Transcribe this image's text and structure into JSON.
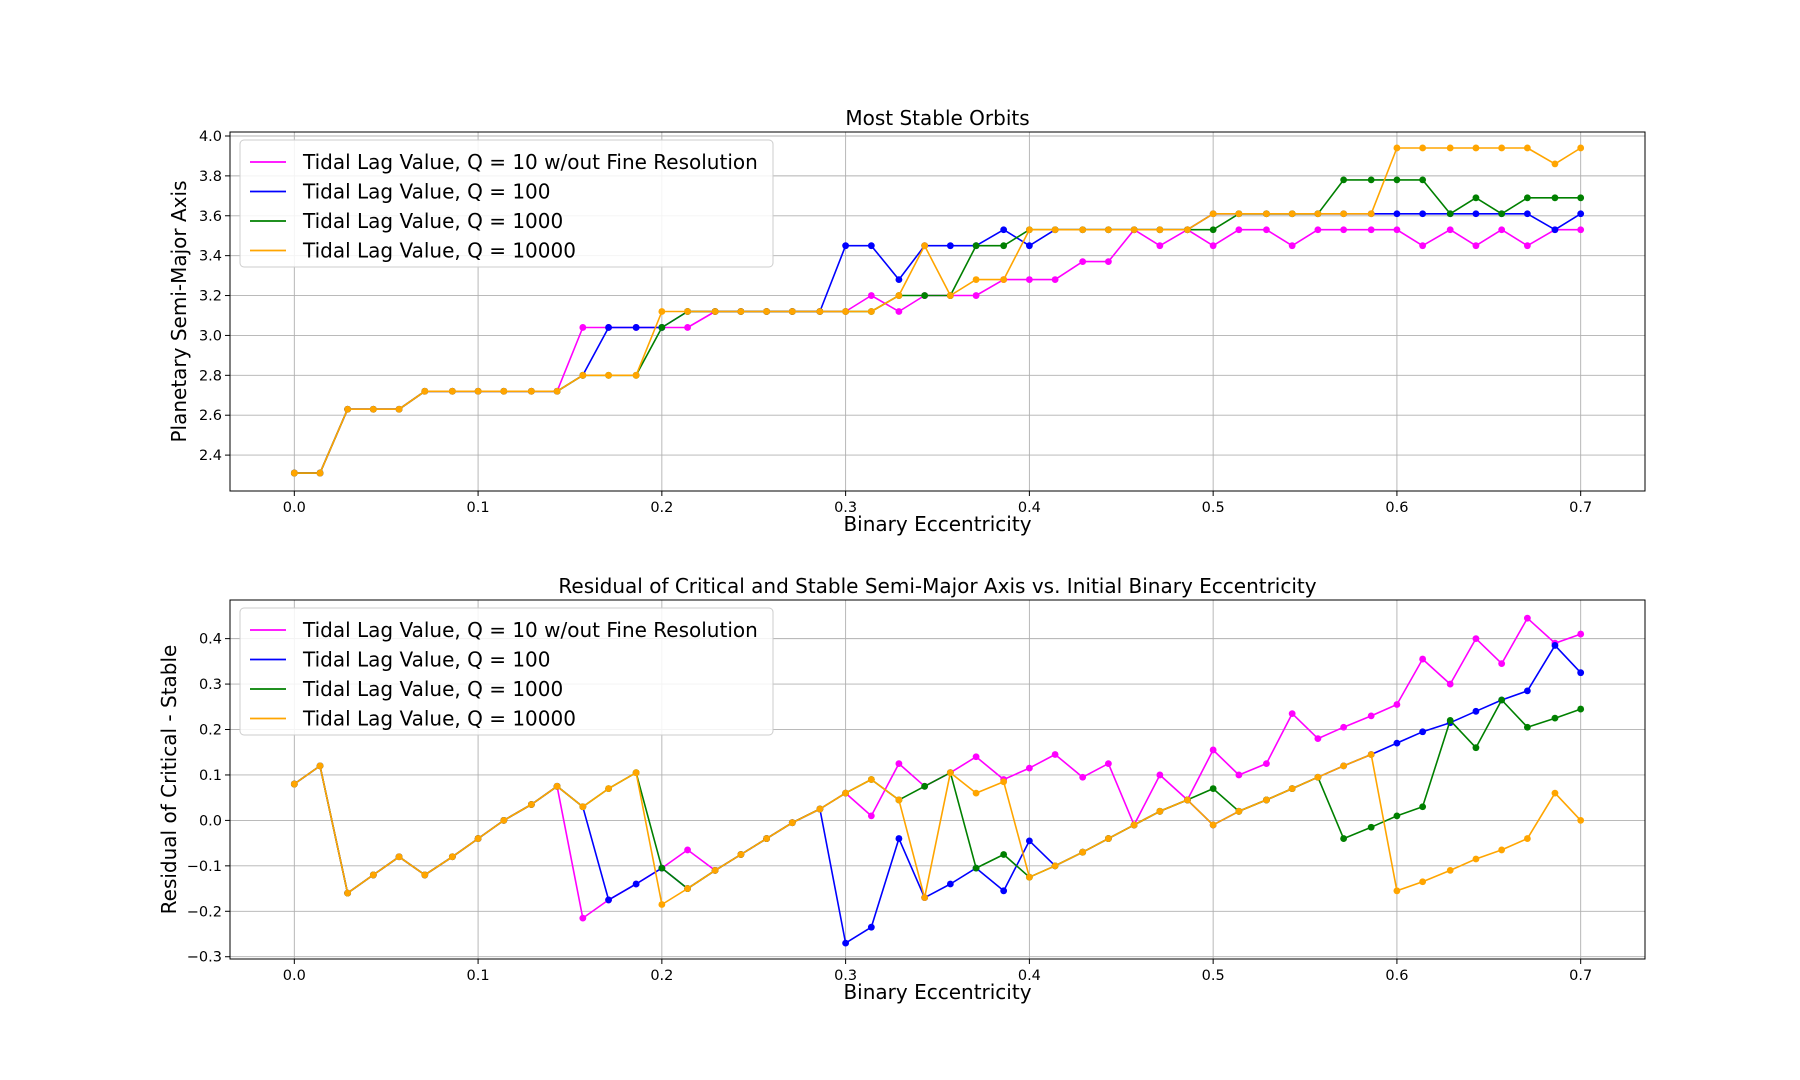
{
  "chart_data": [
    {
      "type": "line",
      "title": "Most Stable Orbits",
      "xlabel": "Binary Eccentricity",
      "ylabel": "Planetary Semi-Major Axis",
      "xlim": [
        -0.035,
        0.735
      ],
      "ylim": [
        2.22,
        4.02
      ],
      "xticks": [
        "0.0",
        "0.1",
        "0.2",
        "0.3",
        "0.4",
        "0.5",
        "0.6",
        "0.7"
      ],
      "yticks": [
        "2.4",
        "2.6",
        "2.8",
        "3.0",
        "3.2",
        "3.4",
        "3.6",
        "3.8",
        "4.0"
      ],
      "grid": true,
      "legend_position": "top-left",
      "x": [
        0.0,
        0.014,
        0.029,
        0.043,
        0.057,
        0.071,
        0.086,
        0.1,
        0.114,
        0.129,
        0.143,
        0.157,
        0.171,
        0.186,
        0.2,
        0.214,
        0.229,
        0.243,
        0.257,
        0.271,
        0.286,
        0.3,
        0.314,
        0.329,
        0.343,
        0.357,
        0.371,
        0.386,
        0.4,
        0.414,
        0.429,
        0.443,
        0.457,
        0.471,
        0.486,
        0.5,
        0.514,
        0.529,
        0.543,
        0.557,
        0.571,
        0.586,
        0.6,
        0.614,
        0.629,
        0.643,
        0.657,
        0.671,
        0.686,
        0.7
      ],
      "series": [
        {
          "name": "Tidal Lag Value, Q = 10 w/out Fine Resolution",
          "color": "#ff00ff",
          "values": [
            2.31,
            2.31,
            2.63,
            2.63,
            2.63,
            2.72,
            2.72,
            2.72,
            2.72,
            2.72,
            2.72,
            3.04,
            3.04,
            3.04,
            3.04,
            3.04,
            3.12,
            3.12,
            3.12,
            3.12,
            3.12,
            3.12,
            3.2,
            3.12,
            3.2,
            3.2,
            3.2,
            3.28,
            3.28,
            3.28,
            3.37,
            3.37,
            3.53,
            3.45,
            3.53,
            3.45,
            3.53,
            3.53,
            3.45,
            3.53,
            3.53,
            3.53,
            3.53,
            3.45,
            3.53,
            3.45,
            3.53,
            3.45,
            3.53,
            3.53
          ]
        },
        {
          "name": "Tidal Lag Value, Q = 100",
          "color": "#0000ff",
          "values": [
            2.31,
            2.31,
            2.63,
            2.63,
            2.63,
            2.72,
            2.72,
            2.72,
            2.72,
            2.72,
            2.72,
            2.8,
            3.04,
            3.04,
            3.04,
            3.12,
            3.12,
            3.12,
            3.12,
            3.12,
            3.12,
            3.45,
            3.45,
            3.28,
            3.45,
            3.45,
            3.45,
            3.53,
            3.45,
            3.53,
            3.53,
            3.53,
            3.53,
            3.53,
            3.53,
            3.61,
            3.61,
            3.61,
            3.61,
            3.61,
            3.61,
            3.61,
            3.61,
            3.61,
            3.61,
            3.61,
            3.61,
            3.61,
            3.53,
            3.61
          ]
        },
        {
          "name": "Tidal Lag Value, Q = 1000",
          "color": "#008000",
          "values": [
            2.31,
            2.31,
            2.63,
            2.63,
            2.63,
            2.72,
            2.72,
            2.72,
            2.72,
            2.72,
            2.72,
            2.8,
            2.8,
            2.8,
            3.04,
            3.12,
            3.12,
            3.12,
            3.12,
            3.12,
            3.12,
            3.12,
            3.12,
            3.2,
            3.2,
            3.2,
            3.45,
            3.45,
            3.53,
            3.53,
            3.53,
            3.53,
            3.53,
            3.53,
            3.53,
            3.53,
            3.61,
            3.61,
            3.61,
            3.61,
            3.78,
            3.78,
            3.78,
            3.78,
            3.61,
            3.69,
            3.61,
            3.69,
            3.69,
            3.69
          ]
        },
        {
          "name": "Tidal Lag Value, Q = 10000",
          "color": "#ffa500",
          "values": [
            2.31,
            2.31,
            2.63,
            2.63,
            2.63,
            2.72,
            2.72,
            2.72,
            2.72,
            2.72,
            2.72,
            2.8,
            2.8,
            2.8,
            3.12,
            3.12,
            3.12,
            3.12,
            3.12,
            3.12,
            3.12,
            3.12,
            3.12,
            3.2,
            3.45,
            3.2,
            3.28,
            3.28,
            3.53,
            3.53,
            3.53,
            3.53,
            3.53,
            3.53,
            3.53,
            3.61,
            3.61,
            3.61,
            3.61,
            3.61,
            3.61,
            3.61,
            3.94,
            3.94,
            3.94,
            3.94,
            3.94,
            3.94,
            3.86,
            3.94
          ]
        }
      ]
    },
    {
      "type": "line",
      "title": "Residual of Critical and Stable Semi-Major Axis vs. Initial Binary Eccentricity",
      "xlabel": "Binary Eccentricity",
      "ylabel": "Residual of Critical - Stable",
      "xlim": [
        -0.035,
        0.735
      ],
      "ylim": [
        -0.305,
        0.485
      ],
      "xticks": [
        "0.0",
        "0.1",
        "0.2",
        "0.3",
        "0.4",
        "0.5",
        "0.6",
        "0.7"
      ],
      "yticks": [
        "−0.3",
        "−0.2",
        "−0.1",
        "0.0",
        "0.1",
        "0.2",
        "0.3",
        "0.4"
      ],
      "grid": true,
      "legend_position": "top-left",
      "x": [
        0.0,
        0.014,
        0.029,
        0.043,
        0.057,
        0.071,
        0.086,
        0.1,
        0.114,
        0.129,
        0.143,
        0.157,
        0.171,
        0.186,
        0.2,
        0.214,
        0.229,
        0.243,
        0.257,
        0.271,
        0.286,
        0.3,
        0.314,
        0.329,
        0.343,
        0.357,
        0.371,
        0.386,
        0.4,
        0.414,
        0.429,
        0.443,
        0.457,
        0.471,
        0.486,
        0.5,
        0.514,
        0.529,
        0.543,
        0.557,
        0.571,
        0.586,
        0.6,
        0.614,
        0.629,
        0.643,
        0.657,
        0.671,
        0.686,
        0.7
      ],
      "series": [
        {
          "name": "Tidal Lag Value, Q = 10 w/out Fine Resolution",
          "color": "#ff00ff",
          "values": [
            0.08,
            0.12,
            -0.16,
            -0.12,
            -0.08,
            -0.12,
            -0.08,
            -0.04,
            0.0,
            0.035,
            0.075,
            -0.215,
            -0.175,
            -0.14,
            -0.105,
            -0.065,
            -0.11,
            -0.075,
            -0.04,
            -0.005,
            0.025,
            0.06,
            0.01,
            0.125,
            0.075,
            0.105,
            0.14,
            0.09,
            0.115,
            0.145,
            0.095,
            0.125,
            -0.01,
            0.1,
            0.045,
            0.155,
            0.1,
            0.125,
            0.235,
            0.18,
            0.205,
            0.23,
            0.255,
            0.355,
            0.3,
            0.4,
            0.345,
            0.445,
            0.39,
            0.41
          ]
        },
        {
          "name": "Tidal Lag Value, Q = 100",
          "color": "#0000ff",
          "values": [
            0.08,
            0.12,
            -0.16,
            -0.12,
            -0.08,
            -0.12,
            -0.08,
            -0.04,
            0.0,
            0.035,
            0.075,
            0.03,
            -0.175,
            -0.14,
            -0.105,
            -0.15,
            -0.11,
            -0.075,
            -0.04,
            -0.005,
            0.025,
            -0.27,
            -0.235,
            -0.04,
            -0.17,
            -0.14,
            -0.105,
            -0.155,
            -0.045,
            -0.1,
            -0.07,
            -0.04,
            -0.01,
            0.02,
            0.045,
            -0.01,
            0.02,
            0.045,
            0.07,
            0.095,
            0.12,
            0.145,
            0.17,
            0.195,
            0.215,
            0.24,
            0.265,
            0.285,
            0.385,
            0.325
          ]
        },
        {
          "name": "Tidal Lag Value, Q = 1000",
          "color": "#008000",
          "values": [
            0.08,
            0.12,
            -0.16,
            -0.12,
            -0.08,
            -0.12,
            -0.08,
            -0.04,
            0.0,
            0.035,
            0.075,
            0.03,
            0.07,
            0.105,
            -0.105,
            -0.15,
            -0.11,
            -0.075,
            -0.04,
            -0.005,
            0.025,
            0.06,
            0.09,
            0.045,
            0.075,
            0.105,
            -0.105,
            -0.075,
            -0.125,
            -0.1,
            -0.07,
            -0.04,
            -0.01,
            0.02,
            0.045,
            0.07,
            0.02,
            0.045,
            0.07,
            0.095,
            -0.04,
            -0.015,
            0.01,
            0.03,
            0.22,
            0.16,
            0.265,
            0.205,
            0.225,
            0.245
          ]
        },
        {
          "name": "Tidal Lag Value, Q = 10000",
          "color": "#ffa500",
          "values": [
            0.08,
            0.12,
            -0.16,
            -0.12,
            -0.08,
            -0.12,
            -0.08,
            -0.04,
            0.0,
            0.035,
            0.075,
            0.03,
            0.07,
            0.105,
            -0.185,
            -0.15,
            -0.11,
            -0.075,
            -0.04,
            -0.005,
            0.025,
            0.06,
            0.09,
            0.045,
            -0.17,
            0.105,
            0.06,
            0.085,
            -0.125,
            -0.1,
            -0.07,
            -0.04,
            -0.01,
            0.02,
            0.045,
            -0.01,
            0.02,
            0.045,
            0.07,
            0.095,
            0.12,
            0.145,
            -0.155,
            -0.135,
            -0.11,
            -0.085,
            -0.065,
            -0.04,
            0.06,
            0.0
          ]
        }
      ]
    }
  ]
}
